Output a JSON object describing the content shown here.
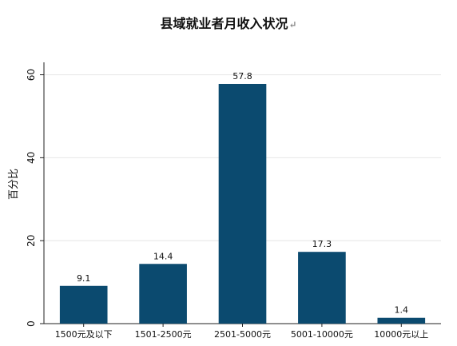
{
  "chart_data": {
    "type": "bar",
    "title": "县域就业者月收入状况",
    "title_mark": "↵",
    "xlabel": "",
    "ylabel": "百分比",
    "categories": [
      "1500元及以下",
      "1501-2500元",
      "2501-5000元",
      "5001-10000元",
      "10000元以上"
    ],
    "values": [
      9.1,
      14.4,
      57.8,
      17.3,
      1.4
    ],
    "value_labels": [
      "9.1",
      "14.4",
      "57.8",
      "17.3",
      "1.4"
    ],
    "yticks": [
      0,
      20,
      40,
      60
    ],
    "ytick_labels": [
      "0",
      "20",
      "40",
      "60"
    ],
    "ylim": [
      0,
      63
    ],
    "grid": true,
    "legend": "none",
    "bar_color": "#0b4a6f",
    "grid_color": "#e6e6e6"
  }
}
